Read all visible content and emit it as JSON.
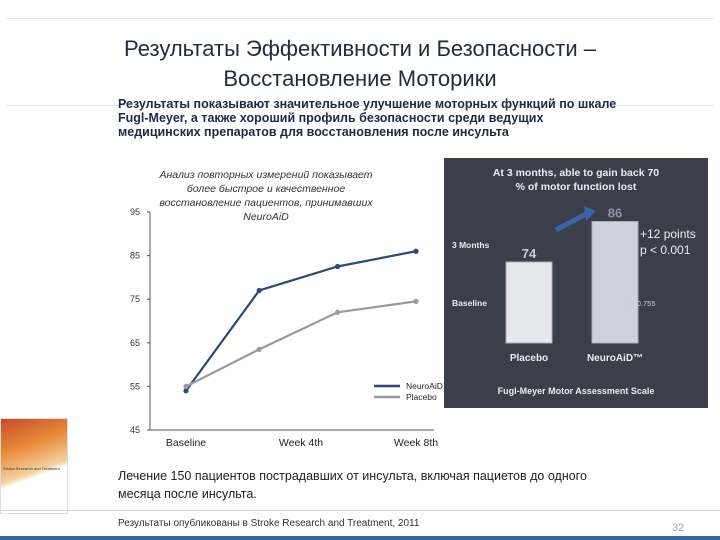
{
  "slide": {
    "title": "Результаты Эффективности и Безопасности –\nВосстановление Моторики",
    "subtitle": "Результаты показывают значительное улучшение моторных функций по шкале\nFugl-Meyer, а также хороший профиль безопасности среди ведущих\nмедицинских препаратов для восстановления после инсульта",
    "bottom_note": "Лечение 150 пациентов пострадавших от инсульта, включая пациетов до одного\nмесяца после инсульта.",
    "footnote": "Результаты опубликованы в Stroke Research and Treatment, 2011",
    "page_number": "32",
    "thumbnail_text": "Stroke Research and Treatment",
    "colors": {
      "title": "#1f2a44",
      "accent": "#3b63a8",
      "neuroaid": "#2b4a7c",
      "placebo": "#9a9a9a",
      "panel": "#3a3f49"
    }
  },
  "chart_data": [
    {
      "type": "line",
      "annotation": "Анализ повторных измерений показывает более быстрое и качественное восстановление пациентов, принимавших NeuroAiD",
      "categories": [
        "Baseline",
        "Week 4th",
        "Week 8th"
      ],
      "x_positions": [
        0,
        0.35,
        1,
        1.65,
        2.2
      ],
      "series": [
        {
          "name": "NeuroAiD™",
          "values": [
            54,
            77,
            82.5,
            86
          ],
          "x": [
            0,
            0.7,
            1.45,
            2.2
          ],
          "color": "#2b4a7c"
        },
        {
          "name": "Placebo",
          "values": [
            55,
            63.5,
            72,
            74.5
          ],
          "x": [
            0,
            0.7,
            1.45,
            2.2
          ],
          "color": "#9a9a9a"
        }
      ],
      "yticks": [
        45,
        55,
        65,
        75,
        85,
        95
      ],
      "ylim": [
        45,
        95
      ],
      "grid": false,
      "legend": "bottom-right"
    },
    {
      "type": "bar",
      "title": "At 3 months, able to gain back 70 % of motor function lost",
      "categories": [
        "Placebo",
        "NeuroAiD™"
      ],
      "three_months": [
        74,
        86
      ],
      "row_labels": [
        "3 Months",
        "Baseline"
      ],
      "p_value_label": "p = 0.755",
      "gain_label": "+12 points",
      "p_label": "p < 0.001",
      "xlabel": "Fugl-Meyer Motor Assessment Scale"
    }
  ]
}
